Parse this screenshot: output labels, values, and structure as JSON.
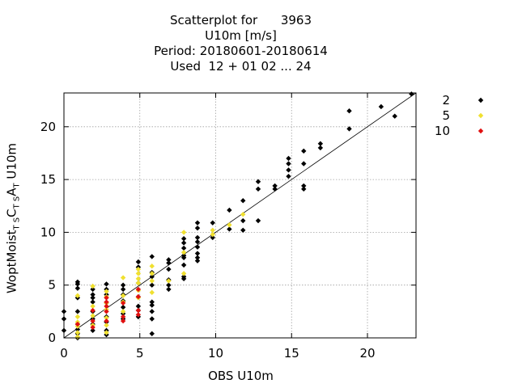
{
  "chart_data": {
    "type": "scatter",
    "title_lines": [
      "Scatterplot for      3963",
      "U10m [m/s]",
      "Period: 20180601-20180614",
      "Used  12 + 01 02 ... 24"
    ],
    "xlabel": "OBS U10m",
    "ylabel": {
      "main": "WoptMoist",
      "sub1": "T S",
      "mid": "C",
      "sub2": "T S",
      "mid2": "A",
      "sub3": "T",
      "tail": " U10m"
    },
    "xlim": [
      0,
      23.2
    ],
    "ylim": [
      0,
      23.2
    ],
    "x_ticks": [
      0,
      5,
      10,
      15,
      20
    ],
    "y_ticks": [
      0,
      5,
      10,
      15,
      20
    ],
    "grid": true,
    "legend_position": "outside-right",
    "colors": {
      "2": "#000000",
      "5": "#f0e030",
      "10": "#e01010"
    },
    "diagonal_line": true,
    "series": [
      {
        "name": "2",
        "color": "#000000",
        "points": [
          [
            0,
            0.7
          ],
          [
            0,
            1.8
          ],
          [
            0,
            2.5
          ],
          [
            0.9,
            5.3
          ],
          [
            0.9,
            5.1
          ],
          [
            0.9,
            4.7
          ],
          [
            0.9,
            3.8
          ],
          [
            0.9,
            2.5
          ],
          [
            0.9,
            1.3
          ],
          [
            0.9,
            0.8
          ],
          [
            0.9,
            0.4
          ],
          [
            0.9,
            0
          ],
          [
            1.9,
            4.6
          ],
          [
            1.9,
            4.1
          ],
          [
            1.9,
            3.8
          ],
          [
            1.9,
            3.4
          ],
          [
            1.9,
            2.5
          ],
          [
            1.9,
            1.8
          ],
          [
            1.9,
            1.3
          ],
          [
            1.9,
            0.7
          ],
          [
            2.8,
            5.1
          ],
          [
            2.8,
            4.6
          ],
          [
            2.8,
            4.1
          ],
          [
            2.8,
            3.3
          ],
          [
            2.8,
            2.0
          ],
          [
            2.8,
            1.5
          ],
          [
            2.8,
            0.7
          ],
          [
            2.8,
            0.3
          ],
          [
            3.9,
            5.0
          ],
          [
            3.9,
            4.6
          ],
          [
            3.9,
            4.1
          ],
          [
            3.9,
            3.5
          ],
          [
            3.9,
            2.9
          ],
          [
            3.9,
            2.3
          ],
          [
            3.9,
            1.8
          ],
          [
            4.9,
            7.2
          ],
          [
            4.9,
            6.7
          ],
          [
            4.9,
            5.2
          ],
          [
            4.9,
            3.9
          ],
          [
            4.9,
            3.0
          ],
          [
            4.9,
            2.6
          ],
          [
            4.9,
            2.0
          ],
          [
            5.8,
            7.7
          ],
          [
            5.8,
            6.2
          ],
          [
            5.8,
            5.8
          ],
          [
            5.8,
            5.0
          ],
          [
            5.8,
            3.4
          ],
          [
            5.8,
            3.1
          ],
          [
            5.8,
            2.5
          ],
          [
            5.8,
            1.8
          ],
          [
            5.8,
            0.4
          ],
          [
            6.9,
            7.4
          ],
          [
            6.9,
            7.1
          ],
          [
            6.9,
            6.5
          ],
          [
            6.9,
            5.5
          ],
          [
            6.9,
            5.0
          ],
          [
            6.9,
            4.6
          ],
          [
            7.9,
            9.4
          ],
          [
            7.9,
            9.0
          ],
          [
            7.9,
            8.5
          ],
          [
            7.9,
            7.8
          ],
          [
            7.9,
            7.6
          ],
          [
            7.9,
            6.9
          ],
          [
            7.9,
            5.8
          ],
          [
            7.9,
            5.6
          ],
          [
            8.8,
            10.9
          ],
          [
            8.8,
            10.4
          ],
          [
            8.8,
            9.5
          ],
          [
            8.8,
            9.1
          ],
          [
            8.8,
            8.6
          ],
          [
            8.8,
            8.0
          ],
          [
            8.8,
            7.6
          ],
          [
            8.8,
            7.3
          ],
          [
            9.8,
            10.9
          ],
          [
            9.8,
            9.5
          ],
          [
            10.9,
            12.1
          ],
          [
            10.9,
            10.3
          ],
          [
            11.8,
            13.0
          ],
          [
            11.8,
            11.1
          ],
          [
            11.8,
            10.2
          ],
          [
            12.8,
            14.8
          ],
          [
            12.8,
            14.1
          ],
          [
            12.8,
            11.1
          ],
          [
            13.9,
            14.4
          ],
          [
            13.9,
            14.1
          ],
          [
            14.8,
            17.0
          ],
          [
            14.8,
            16.5
          ],
          [
            14.8,
            15.9
          ],
          [
            14.8,
            15.3
          ],
          [
            15.8,
            17.7
          ],
          [
            15.8,
            16.5
          ],
          [
            15.8,
            14.4
          ],
          [
            15.8,
            14.1
          ],
          [
            16.9,
            18.4
          ],
          [
            16.9,
            18.0
          ],
          [
            18.8,
            21.5
          ],
          [
            18.8,
            19.8
          ],
          [
            20.9,
            21.9
          ],
          [
            21.8,
            21.0
          ],
          [
            22.9,
            23.1
          ]
        ]
      },
      {
        "name": "5",
        "color": "#f0e030",
        "points": [
          [
            0.9,
            4.0
          ],
          [
            0.9,
            2.0
          ],
          [
            0.9,
            1.5
          ],
          [
            0.9,
            1.1
          ],
          [
            0.9,
            0.5
          ],
          [
            0.9,
            0.1
          ],
          [
            1.9,
            4.9
          ],
          [
            1.9,
            3.0
          ],
          [
            1.9,
            2.1
          ],
          [
            1.9,
            1.2
          ],
          [
            2.8,
            4.4
          ],
          [
            2.8,
            3.9
          ],
          [
            2.8,
            3.3
          ],
          [
            2.8,
            2.7
          ],
          [
            2.8,
            1.9
          ],
          [
            2.8,
            1.2
          ],
          [
            2.8,
            0.5
          ],
          [
            3.9,
            5.7
          ],
          [
            3.9,
            4.0
          ],
          [
            3.9,
            3.4
          ],
          [
            3.9,
            2.5
          ],
          [
            4.9,
            6.5
          ],
          [
            4.9,
            6.1
          ],
          [
            4.9,
            5.6
          ],
          [
            4.9,
            5.2
          ],
          [
            4.9,
            4.5
          ],
          [
            4.9,
            3.8
          ],
          [
            5.8,
            6.8
          ],
          [
            5.8,
            6.1
          ],
          [
            5.8,
            5.4
          ],
          [
            5.8,
            4.3
          ],
          [
            6.9,
            5.4
          ],
          [
            7.9,
            10.0
          ],
          [
            7.9,
            8.1
          ],
          [
            7.9,
            6.1
          ],
          [
            9.8,
            10.2
          ],
          [
            9.8,
            9.8
          ],
          [
            10.9,
            10.7
          ],
          [
            11.8,
            11.7
          ]
        ]
      },
      {
        "name": "10",
        "color": "#e01010",
        "points": [
          [
            0.9,
            1.3
          ],
          [
            1.9,
            2.6
          ],
          [
            1.9,
            1.6
          ],
          [
            1.9,
            1.0
          ],
          [
            2.8,
            3.8
          ],
          [
            2.8,
            3.4
          ],
          [
            2.8,
            3.0
          ],
          [
            2.8,
            2.5
          ],
          [
            2.8,
            1.6
          ],
          [
            3.9,
            3.3
          ],
          [
            3.9,
            2.0
          ],
          [
            3.9,
            1.6
          ],
          [
            4.9,
            4.6
          ],
          [
            4.9,
            3.9
          ],
          [
            4.9,
            2.6
          ],
          [
            4.9,
            2.2
          ]
        ]
      }
    ]
  }
}
